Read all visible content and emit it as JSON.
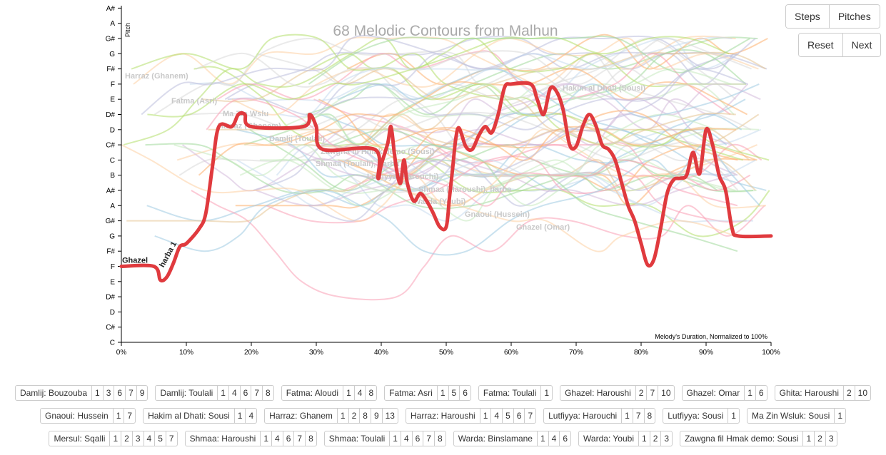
{
  "controls": {
    "steps_label": "Steps",
    "pitches_label": "Pitches",
    "reset_label": "Reset",
    "next_label": "Next"
  },
  "chart_data": {
    "type": "line",
    "title": "68 Melodic Contours from Malhun",
    "ylabel": "Pitch",
    "xlabel": "Melody's Duration, Normalized to 100%",
    "x_ticks": [
      "0%",
      "10%",
      "20%",
      "30%",
      "40%",
      "50%",
      "60%",
      "70%",
      "80%",
      "90%",
      "100%"
    ],
    "xlim": [
      0,
      100
    ],
    "y_ticks": [
      "C",
      "C#",
      "D",
      "D#",
      "E",
      "F",
      "F#",
      "G",
      "G#",
      "A",
      "A#",
      "B",
      "C",
      "C#",
      "D",
      "D#",
      "E",
      "F",
      "F#",
      "G",
      "G#",
      "A",
      "A#"
    ],
    "ylim": [
      0,
      22
    ],
    "grid": false,
    "highlight": {
      "name": "Ghazel",
      "subname": "harba 1",
      "color": "#e03a3e",
      "points": [
        [
          0,
          5
        ],
        [
          5,
          5
        ],
        [
          6,
          4.1
        ],
        [
          7,
          4.3
        ],
        [
          8,
          5.2
        ],
        [
          9,
          6.3
        ],
        [
          10,
          6.5
        ],
        [
          12,
          7.5
        ],
        [
          13,
          8.5
        ],
        [
          14,
          11.5
        ],
        [
          15,
          14.2
        ],
        [
          17,
          14.2
        ],
        [
          18,
          15
        ],
        [
          19,
          15
        ],
        [
          20,
          14.2
        ],
        [
          28,
          14.2
        ],
        [
          29,
          15
        ],
        [
          30,
          14.2
        ],
        [
          31,
          12.7
        ],
        [
          39,
          12.7
        ],
        [
          39.5,
          10.8
        ],
        [
          40,
          11.7
        ],
        [
          41,
          13.1
        ],
        [
          41.5,
          14.2
        ],
        [
          42,
          12.5
        ],
        [
          42.5,
          11
        ],
        [
          43,
          10.5
        ],
        [
          43.5,
          12
        ],
        [
          44,
          10.5
        ],
        [
          45,
          9.3
        ],
        [
          46,
          9.8
        ],
        [
          47,
          9.3
        ],
        [
          48,
          8.5
        ],
        [
          49,
          7.6
        ],
        [
          50,
          7.6
        ],
        [
          50.5,
          9.5
        ],
        [
          51,
          11.5
        ],
        [
          51.5,
          13.5
        ],
        [
          52,
          14.1
        ],
        [
          53,
          12.9
        ],
        [
          54,
          12.7
        ],
        [
          55,
          13.6
        ],
        [
          56,
          14.2
        ],
        [
          57,
          13.8
        ],
        [
          58,
          15
        ],
        [
          59,
          16.8
        ],
        [
          60,
          17
        ],
        [
          63,
          17
        ],
        [
          64,
          16
        ],
        [
          65,
          15
        ],
        [
          66,
          16.7
        ],
        [
          67,
          16.5
        ],
        [
          68,
          15.3
        ],
        [
          69,
          13
        ],
        [
          70,
          12.9
        ],
        [
          71,
          14.2
        ],
        [
          72,
          15
        ],
        [
          73,
          14.3
        ],
        [
          74,
          13
        ],
        [
          75,
          12.7
        ],
        [
          76,
          12
        ],
        [
          77,
          10.5
        ],
        [
          78,
          9
        ],
        [
          79,
          8
        ],
        [
          80,
          6.5
        ],
        [
          81,
          5.1
        ],
        [
          82,
          5.5
        ],
        [
          83,
          7.5
        ],
        [
          84,
          9.8
        ],
        [
          85,
          10.7
        ],
        [
          86,
          10.8
        ],
        [
          87,
          11
        ],
        [
          88,
          12.5
        ],
        [
          89,
          11.1
        ],
        [
          90,
          14
        ],
        [
          91,
          13
        ],
        [
          92,
          11
        ],
        [
          93,
          10
        ],
        [
          94,
          7.5
        ],
        [
          95,
          7
        ],
        [
          100,
          7
        ]
      ]
    },
    "background_series_count": 67,
    "background_labels": [
      "Harraz (Ghanem)",
      "Ma Zin Wslu",
      "Zawgna fil Hmak demo (Sousi)",
      "Shmaa (Haroushi), harba",
      "Ghazel (Omar)",
      "Fatma (Asri)",
      "Damlij (Toulali)",
      "Lutfiyya (Harouchi)",
      "Gnaoui (Hussein)",
      "Hakim al Dhati (Sousi)",
      "Harraz (Ghanem)",
      "Shmaa (Toulali), harba",
      "Warda (Youbi)"
    ]
  },
  "songs": [
    [
      {
        "name": "Damlij: Bouzouba",
        "nums": [
          "1",
          "3",
          "6",
          "7",
          "9"
        ]
      },
      {
        "name": "Damlij: Toulali",
        "nums": [
          "1",
          "4",
          "6",
          "7",
          "8"
        ]
      },
      {
        "name": "Fatma: Aloudi",
        "nums": [
          "1",
          "4",
          "8"
        ]
      },
      {
        "name": "Fatma: Asri",
        "nums": [
          "1",
          "5",
          "6"
        ]
      },
      {
        "name": "Fatma: Toulali",
        "nums": [
          "1"
        ]
      },
      {
        "name": "Ghazel: Haroushi",
        "nums": [
          "2",
          "7",
          "10"
        ]
      },
      {
        "name": "Ghazel: Omar",
        "nums": [
          "1",
          "6"
        ]
      },
      {
        "name": "Ghita: Haroushi",
        "nums": [
          "2",
          "10"
        ]
      }
    ],
    [
      {
        "name": "Gnaoui: Hussein",
        "nums": [
          "1",
          "7"
        ]
      },
      {
        "name": "Hakim al Dhati: Sousi",
        "nums": [
          "1",
          "4"
        ]
      },
      {
        "name": "Harraz: Ghanem",
        "nums": [
          "1",
          "2",
          "8",
          "9",
          "13"
        ]
      },
      {
        "name": "Harraz: Haroushi",
        "nums": [
          "1",
          "4",
          "5",
          "6",
          "7"
        ]
      },
      {
        "name": "Lutfiyya: Harouchi",
        "nums": [
          "1",
          "7",
          "8"
        ]
      },
      {
        "name": "Lutfiyya: Sousi",
        "nums": [
          "1"
        ]
      },
      {
        "name": "Ma Zin Wsluk: Sousi",
        "nums": [
          "1"
        ]
      }
    ],
    [
      {
        "name": "Mersul: Sqalli",
        "nums": [
          "1",
          "2",
          "3",
          "4",
          "5",
          "7"
        ]
      },
      {
        "name": "Shmaa: Haroushi",
        "nums": [
          "1",
          "4",
          "6",
          "7",
          "8"
        ]
      },
      {
        "name": "Shmaa: Toulali",
        "nums": [
          "1",
          "4",
          "6",
          "7",
          "8"
        ]
      },
      {
        "name": "Warda: Binslamane",
        "nums": [
          "1",
          "4",
          "6"
        ]
      },
      {
        "name": "Warda: Youbi",
        "nums": [
          "1",
          "2",
          "3"
        ]
      },
      {
        "name": "Zawgna fil Hmak demo: Sousi",
        "nums": [
          "1",
          "2",
          "3"
        ]
      }
    ]
  ]
}
